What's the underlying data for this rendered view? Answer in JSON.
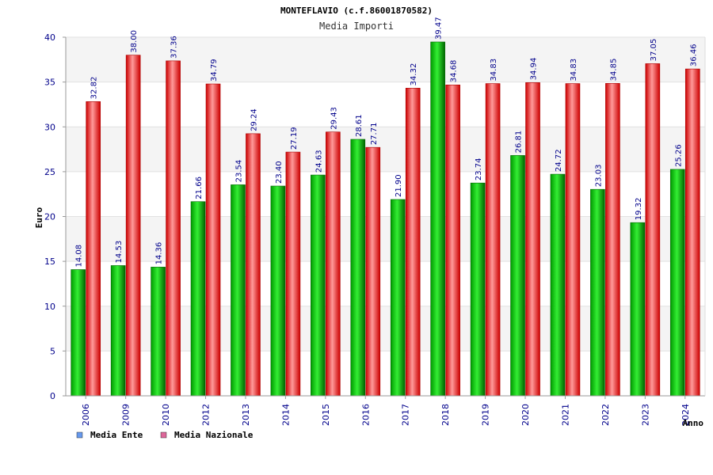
{
  "chart_data": {
    "type": "bar",
    "title": "MONTEFLAVIO (c.f.86001870582)",
    "subtitle": "Media Importi",
    "xlabel": "Anno",
    "ylabel": "Euro",
    "ylim": [
      0,
      40
    ],
    "yticks": [
      0,
      5,
      10,
      15,
      20,
      25,
      30,
      35,
      40
    ],
    "categories": [
      "2006",
      "2009",
      "2010",
      "2012",
      "2013",
      "2014",
      "2015",
      "2016",
      "2017",
      "2018",
      "2019",
      "2020",
      "2021",
      "2022",
      "2023",
      "2024"
    ],
    "series": [
      {
        "name": "Media Ente",
        "color": "#00bb00",
        "values": [
          14.08,
          14.53,
          14.36,
          21.66,
          23.54,
          23.4,
          24.63,
          28.61,
          21.9,
          39.47,
          23.74,
          26.81,
          24.72,
          23.03,
          19.32,
          25.26
        ],
        "labels": [
          "14.08",
          "14.53",
          "14.36",
          "21.66",
          "23.54",
          "23.40",
          "24.63",
          "28.61",
          "21.90",
          "39.47",
          "23.74",
          "26.81",
          "24.72",
          "23.03",
          "19.32",
          "25.26"
        ]
      },
      {
        "name": "Media Nazionale",
        "color": "#ee1111",
        "values": [
          32.82,
          38.0,
          37.36,
          34.79,
          29.24,
          27.19,
          29.43,
          27.71,
          34.32,
          34.68,
          34.83,
          34.94,
          34.83,
          34.85,
          37.05,
          36.46
        ],
        "labels": [
          "32.82",
          "38.00",
          "37.36",
          "34.79",
          "29.24",
          "27.19",
          "29.43",
          "27.71",
          "34.32",
          "34.68",
          "34.83",
          "34.94",
          "34.83",
          "34.85",
          "37.05",
          "36.46"
        ]
      }
    ],
    "legend": {
      "placement": "bottom-left",
      "items": [
        {
          "label": "Media Ente",
          "swatch": "#6699ee"
        },
        {
          "label": "Media Nazionale",
          "swatch": "#dd6699"
        }
      ]
    },
    "grid": true,
    "band_colors": [
      "#f4f4f4",
      "#ffffff"
    ]
  }
}
